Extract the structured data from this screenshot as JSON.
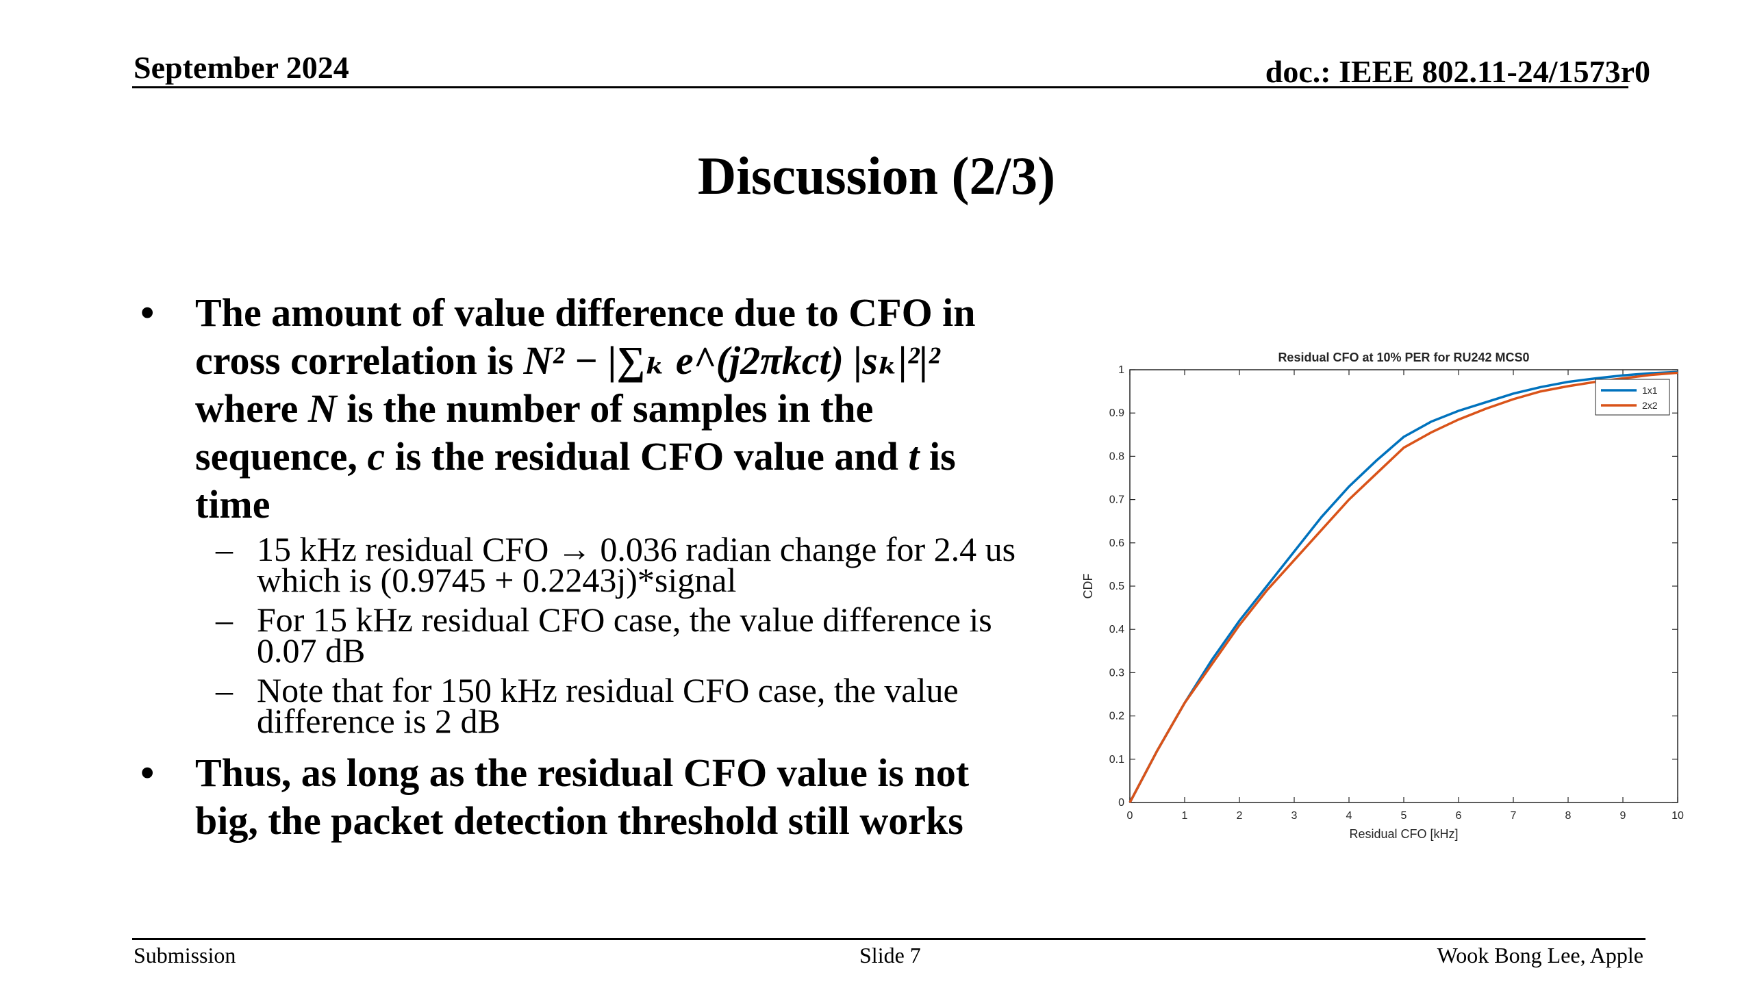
{
  "header": {
    "date": "September 2024",
    "doc": "doc.: IEEE 802.11-24/1573r0"
  },
  "title": "Discussion (2/3)",
  "bullets": {
    "b1_pre": "The amount of value difference due to CFO in cross correlation is ",
    "b1_formula": "N² − |∑ₖ e^(j2πkct) |sₖ|²|²",
    "b1_where": " where ",
    "b1_N": "N",
    "b1_mid": " is the number of samples in the sequence, ",
    "b1_c": "c",
    "b1_mid2": " is the residual CFO value and ",
    "b1_t": "t",
    "b1_end": " is time",
    "subs": [
      "15 kHz residual CFO → 0.036 radian change for 2.4 us which is (0.9745 + 0.2243j)*signal",
      "For 15 kHz residual CFO case, the value difference is 0.07 dB",
      "Note that for 150 kHz residual CFO case, the value difference is 2 dB"
    ],
    "b2": "Thus, as long as the residual CFO value is not big, the packet detection threshold still works"
  },
  "chart_data": {
    "type": "line",
    "title": "Residual CFO at 10% PER for RU242 MCS0",
    "xlabel": "Residual CFO [kHz]",
    "ylabel": "CDF",
    "xlim": [
      0,
      10
    ],
    "ylim": [
      0,
      1
    ],
    "xticks": [
      "0",
      "1",
      "2",
      "3",
      "4",
      "5",
      "6",
      "7",
      "8",
      "9",
      "10"
    ],
    "yticks": [
      "0",
      "0.1",
      "0.2",
      "0.3",
      "0.4",
      "0.5",
      "0.6",
      "0.7",
      "0.8",
      "0.9",
      "1"
    ],
    "legend_position": "top-right",
    "series": [
      {
        "name": "1x1",
        "color": "#0072BD",
        "x": [
          0,
          0.5,
          1,
          1.5,
          2,
          2.5,
          3,
          3.5,
          4,
          4.5,
          5,
          5.5,
          6,
          6.5,
          7,
          7.5,
          8,
          8.5,
          9,
          9.5,
          10
        ],
        "y": [
          0,
          0.12,
          0.23,
          0.33,
          0.42,
          0.5,
          0.58,
          0.66,
          0.73,
          0.79,
          0.845,
          0.88,
          0.905,
          0.925,
          0.945,
          0.96,
          0.972,
          0.98,
          0.987,
          0.992,
          0.995
        ]
      },
      {
        "name": "2x2",
        "color": "#D95319",
        "x": [
          0,
          0.5,
          1,
          1.5,
          2,
          2.5,
          3,
          3.5,
          4,
          4.5,
          5,
          5.5,
          6,
          6.5,
          7,
          7.5,
          8,
          8.5,
          9,
          9.5,
          10
        ],
        "y": [
          0,
          0.12,
          0.23,
          0.32,
          0.41,
          0.49,
          0.56,
          0.63,
          0.7,
          0.76,
          0.82,
          0.855,
          0.885,
          0.91,
          0.932,
          0.95,
          0.962,
          0.972,
          0.98,
          0.988,
          0.993
        ]
      }
    ]
  },
  "footer": {
    "left": "Submission",
    "center": "Slide 7",
    "right": "Wook Bong Lee, Apple"
  }
}
